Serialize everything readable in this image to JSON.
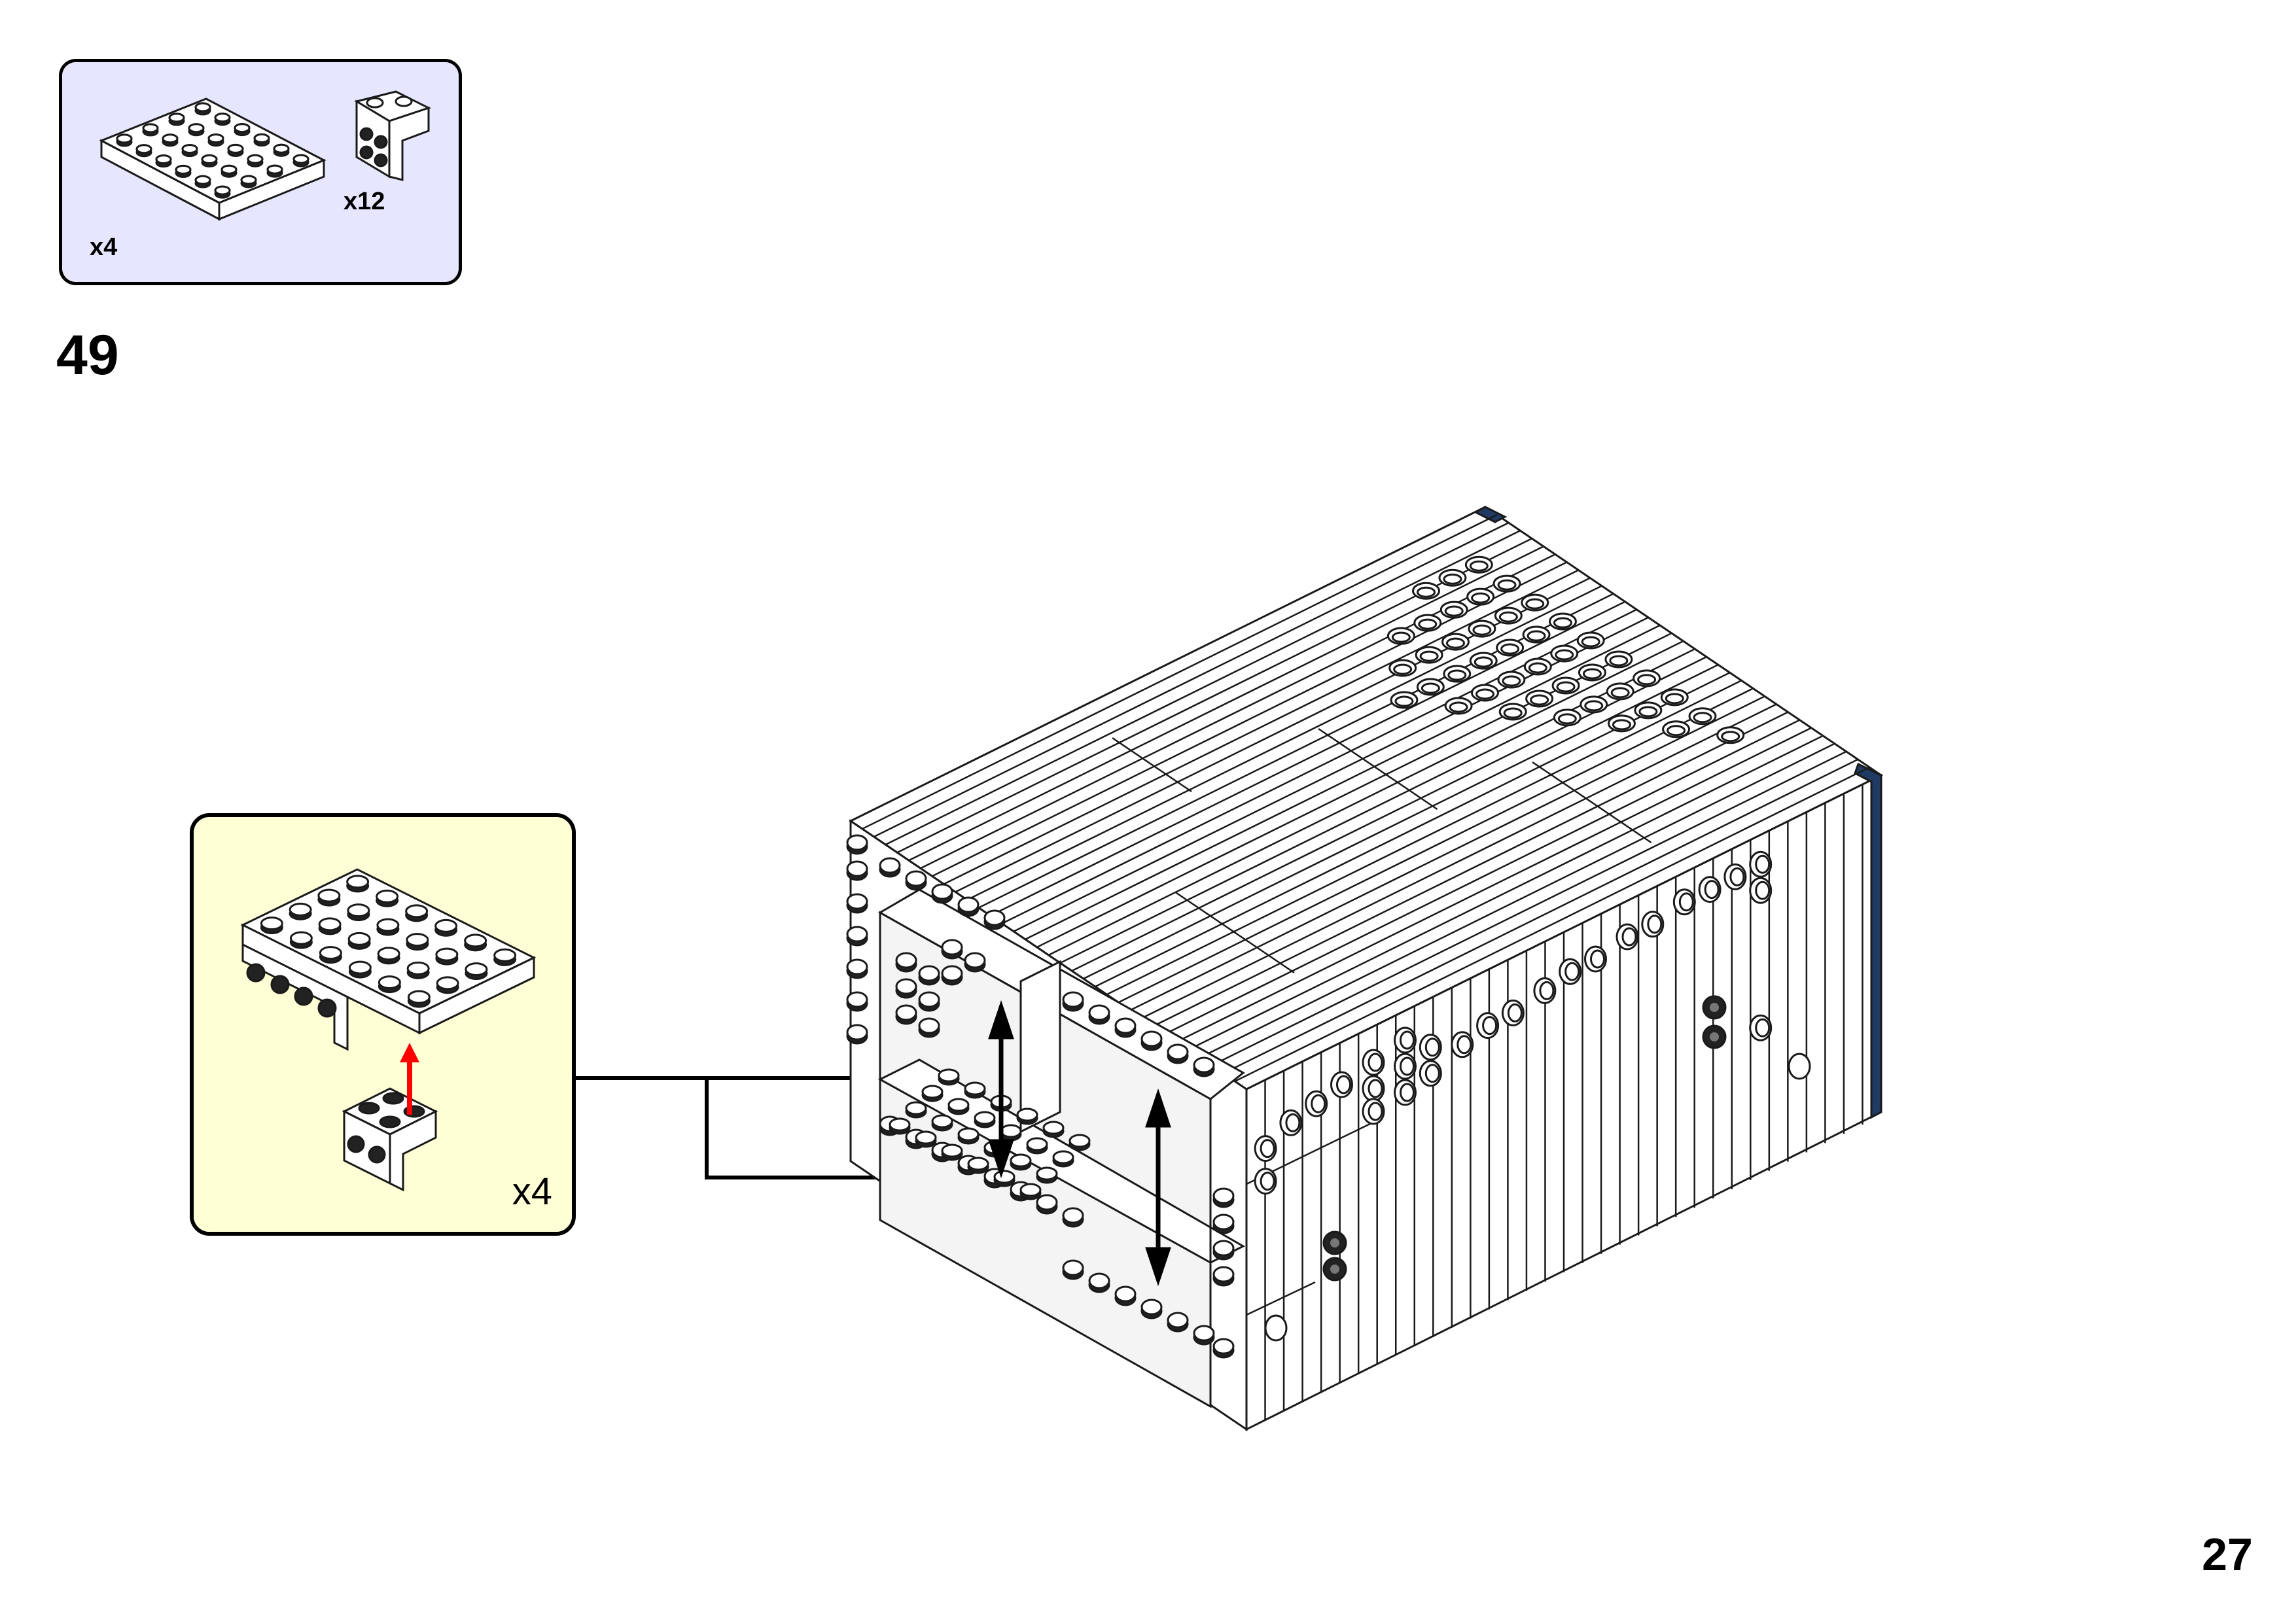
{
  "page": {
    "step_number": "49",
    "page_number": "27"
  },
  "parts_list": {
    "background": "#e6e6ff",
    "items": [
      {
        "part": "plate-4x6-white",
        "quantity": "x4"
      },
      {
        "part": "bracket-1x2-2x2-white",
        "quantity": "x12"
      }
    ]
  },
  "subassembly": {
    "background": "#ffffd6",
    "multiplier": "x4",
    "arrow_color": "#ff0000"
  },
  "colors": {
    "brick_white": "#ffffff",
    "outline": "#1a1a1a",
    "stud_dark": "#222222",
    "accent_blue": "#1f3a63"
  }
}
